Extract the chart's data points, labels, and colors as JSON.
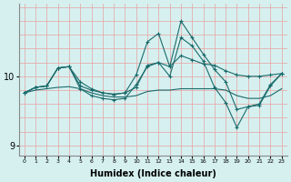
{
  "xlabel": "Humidex (Indice chaleur)",
  "background_color": "#d6f0f0",
  "grid_color": "#e8a0a0",
  "line_color": "#1a6b6b",
  "x_values": [
    0,
    1,
    2,
    3,
    4,
    5,
    6,
    7,
    8,
    9,
    10,
    11,
    12,
    13,
    14,
    15,
    16,
    17,
    18,
    19,
    20,
    21,
    22,
    23
  ],
  "series1": [
    9.76,
    9.84,
    9.86,
    10.12,
    10.14,
    9.86,
    9.8,
    9.76,
    9.74,
    9.76,
    9.84,
    10.16,
    10.2,
    10.14,
    10.3,
    10.24,
    10.18,
    10.16,
    10.08,
    10.02,
    10.0,
    10.0,
    10.02,
    10.04
  ],
  "series2": [
    9.76,
    9.84,
    9.86,
    10.12,
    10.14,
    9.92,
    9.82,
    9.76,
    9.74,
    9.76,
    10.02,
    10.5,
    10.62,
    10.14,
    10.8,
    10.56,
    10.32,
    10.1,
    9.92,
    9.52,
    9.56,
    9.58,
    9.86,
    10.04
  ],
  "series3": [
    9.76,
    9.84,
    9.86,
    10.12,
    10.14,
    9.82,
    9.72,
    9.68,
    9.66,
    9.68,
    9.88,
    10.14,
    10.2,
    10.0,
    10.56,
    10.44,
    10.22,
    9.84,
    9.62,
    9.26,
    9.56,
    9.6,
    9.88,
    10.04
  ],
  "series4": [
    9.76,
    9.8,
    9.82,
    9.84,
    9.85,
    9.82,
    9.76,
    9.72,
    9.7,
    9.7,
    9.72,
    9.78,
    9.8,
    9.8,
    9.82,
    9.82,
    9.82,
    9.82,
    9.8,
    9.72,
    9.68,
    9.68,
    9.72,
    9.82
  ],
  "ylim": [
    8.85,
    11.05
  ],
  "yticks": [
    9,
    10
  ],
  "xlim": [
    -0.5,
    23.5
  ],
  "xticks": [
    0,
    1,
    2,
    3,
    4,
    5,
    6,
    7,
    8,
    9,
    10,
    11,
    12,
    13,
    14,
    15,
    16,
    17,
    18,
    19,
    20,
    21,
    22,
    23
  ]
}
